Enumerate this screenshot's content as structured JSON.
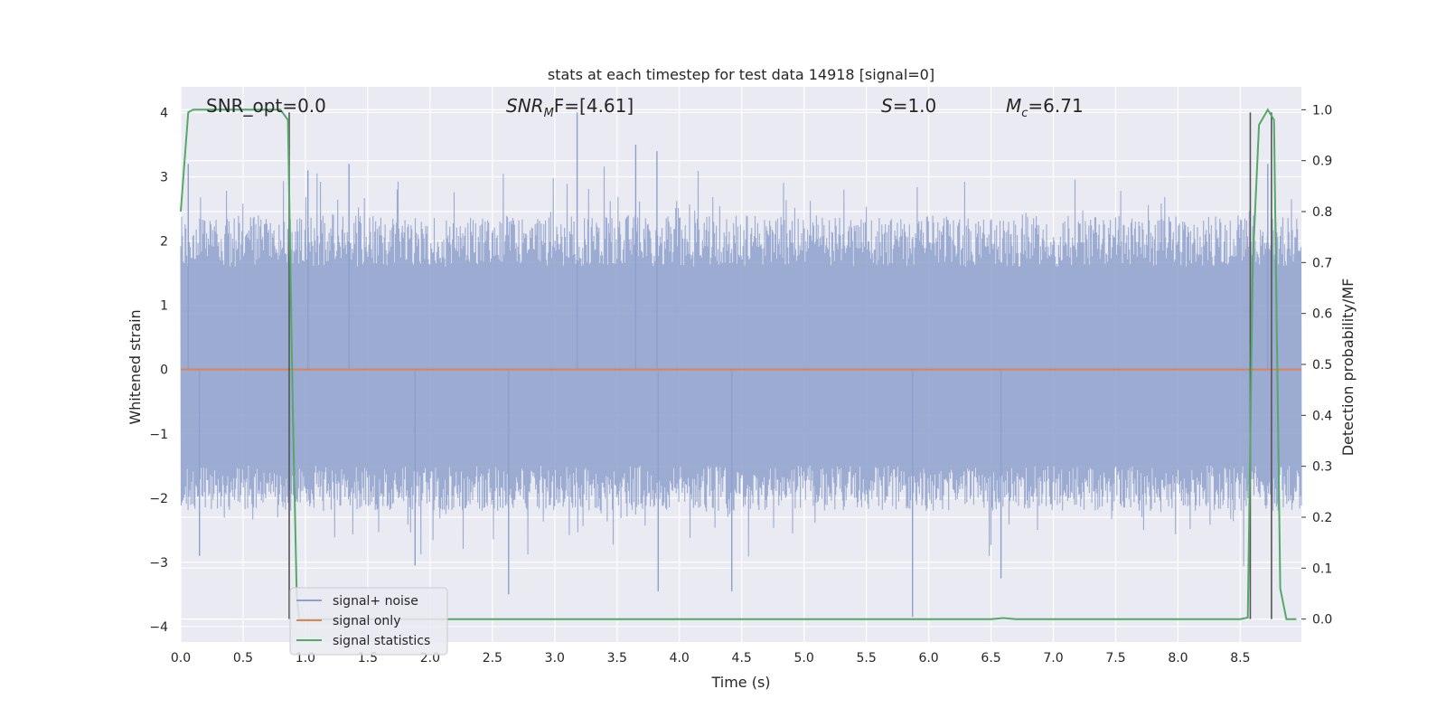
{
  "chart_data": {
    "type": "line",
    "title": "stats at each timestep for test data 14918 [signal=0]",
    "xlabel": "Time (s)",
    "ylabel": "Whitened strain",
    "ylabel_right": "Detection probability/MF",
    "xlim": [
      0.0,
      8.99
    ],
    "ylim": [
      -4.24,
      4.4
    ],
    "ylim_right": [
      -0.045,
      1.045
    ],
    "x_ticks": [
      "0.0",
      "0.5",
      "1.0",
      "1.5",
      "2.0",
      "2.5",
      "3.0",
      "3.5",
      "4.0",
      "4.5",
      "5.0",
      "5.5",
      "6.0",
      "6.5",
      "7.0",
      "7.5",
      "8.0",
      "8.5"
    ],
    "y_ticks": [
      "4",
      "3",
      "2",
      "1",
      "0",
      "−1",
      "−2",
      "−3",
      "−4"
    ],
    "y_ticks_right": [
      "1.0",
      "0.9",
      "0.8",
      "0.7",
      "0.6",
      "0.5",
      "0.4",
      "0.3",
      "0.2",
      "0.1",
      "0.0"
    ],
    "grid": true,
    "legend_position": "lower-left",
    "annotations": {
      "snr_opt": "SNR_opt=0.0",
      "snr_mf_base": "SNR",
      "snr_mf_sub": "M",
      "snr_mf_tail": "F=[4.61]",
      "s_italic": "S",
      "s_value": "=1.0",
      "mc_base": "M",
      "mc_sub": "c",
      "mc_value": "=6.71"
    },
    "series": [
      {
        "name": "signal+ noise",
        "color": "#8da0cb",
        "kind": "noise",
        "envelope_upper_typical": [
          1.6,
          2.4
        ],
        "envelope_lower_typical": [
          -1.5,
          -2.2
        ],
        "notable_spikes": [
          {
            "x": 0.06,
            "y": 3.2
          },
          {
            "x": 0.87,
            "y": 3.5
          },
          {
            "x": 1.02,
            "y": 3.1
          },
          {
            "x": 1.35,
            "y": 3.2
          },
          {
            "x": 3.18,
            "y": 4.0
          },
          {
            "x": 3.65,
            "y": 3.5
          },
          {
            "x": 3.82,
            "y": 3.4
          },
          {
            "x": 8.72,
            "y": 3.2
          },
          {
            "x": 2.63,
            "y": -3.5
          },
          {
            "x": 3.83,
            "y": -3.45
          },
          {
            "x": 4.42,
            "y": -3.45
          },
          {
            "x": 5.87,
            "y": -3.85
          },
          {
            "x": 6.58,
            "y": -3.25
          },
          {
            "x": 1.88,
            "y": -3.05
          },
          {
            "x": 0.15,
            "y": -2.9
          }
        ]
      },
      {
        "name": "signal only",
        "color": "#dd8452",
        "kind": "flat",
        "x": [
          0.0,
          8.99
        ],
        "y": [
          0.0,
          0.0
        ]
      },
      {
        "name": "signal statistics",
        "color": "#55a868",
        "kind": "prob",
        "x": [
          0.0,
          0.06,
          0.1,
          0.3,
          0.8,
          0.86,
          0.9,
          0.93,
          0.95,
          1.0,
          6.5,
          6.6,
          6.7,
          8.5,
          8.56,
          8.6,
          8.65,
          8.72,
          8.77,
          8.82,
          8.87,
          8.95
        ],
        "y": [
          0.8,
          0.995,
          1.0,
          1.0,
          1.0,
          0.98,
          0.4,
          0.05,
          0.0,
          0.0,
          0.0,
          0.002,
          0.0,
          0.0,
          0.003,
          0.7,
          0.97,
          1.0,
          0.98,
          0.06,
          0.0,
          0.0
        ]
      }
    ],
    "vertical_markers": [
      {
        "x": 0.87,
        "y_top": 4.0
      },
      {
        "x": 8.58,
        "y_top": 4.0
      },
      {
        "x": 8.75,
        "y_top": 4.0
      }
    ],
    "colors": {
      "background": "#eaeaf2",
      "grid": "#ffffff",
      "marker": "#555555"
    }
  }
}
